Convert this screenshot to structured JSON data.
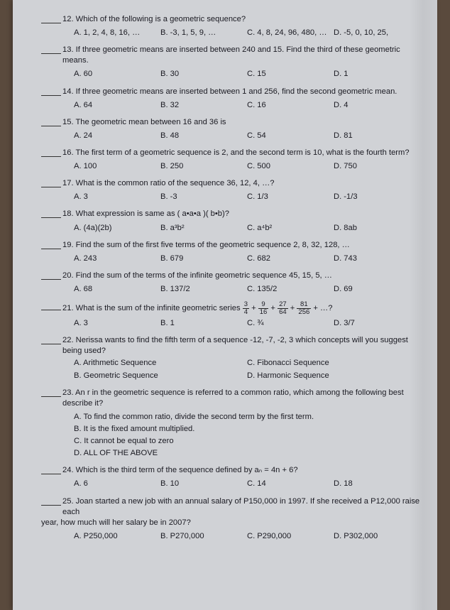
{
  "questions": [
    {
      "num": "12",
      "stem": "Which of the following is a geometric sequence?",
      "opts": [
        "A.  1, 2, 4, 8, 16, …",
        "B. -3, 1, 5, 9, …",
        "C. 4, 8, 24, 96, 480, …",
        "D. -5, 0, 10, 25,"
      ]
    },
    {
      "num": "13",
      "stem": "If three geometric means are inserted between 240 and 15. Find the third of these geometric means.",
      "opts": [
        "A.  60",
        "B. 30",
        "C. 15",
        "D. 1"
      ]
    },
    {
      "num": "14",
      "stem": "If three geometric means are inserted between 1 and 256, find the second geometric mean.",
      "opts": [
        "A.  64",
        "B. 32",
        "C. 16",
        "D. 4"
      ]
    },
    {
      "num": "15",
      "stem": "The geometric mean between 16 and 36 is",
      "opts": [
        "A.  24",
        "B. 48",
        "C. 54",
        "D. 81"
      ]
    },
    {
      "num": "16",
      "stem": "The first term of a geometric sequence is 2, and the second term is 10, what is the fourth term?",
      "opts": [
        "A.  100",
        "B. 250",
        "C. 500",
        "D. 750"
      ]
    },
    {
      "num": "17",
      "stem": "What is the common ratio of the sequence 36, 12, 4, …?",
      "opts": [
        "A.  3",
        "B. -3",
        "C.  1/3",
        "D. -1/3"
      ]
    },
    {
      "num": "18",
      "stem": "What expression is same as ( a•a•a )( b•b)?",
      "opts": [
        "A.  (4a)(2b)",
        "B. a³b²",
        "C. a⁴b²",
        "D. 8ab"
      ]
    },
    {
      "num": "19",
      "stem": "Find the sum of the first five terms of the geometric sequence 2, 8, 32, 128, …",
      "opts": [
        "A.  243",
        "B. 679",
        "C. 682",
        "D. 743"
      ]
    },
    {
      "num": "20",
      "stem": "Find the sum of the terms of the infinite geometric sequence 45, 15, 5, …",
      "opts": [
        "A.  68",
        "B. 137/2",
        "C. 135/2",
        "D. 69"
      ]
    },
    {
      "num": "21",
      "stem": "What is the sum of the infinite geometric series",
      "series": {
        "terms": [
          [
            "3",
            "4"
          ],
          [
            "9",
            "16"
          ],
          [
            "27",
            "64"
          ],
          [
            "81",
            "256"
          ]
        ],
        "tail": "+ …?"
      },
      "opts": [
        "A.  3",
        "B. 1",
        "C. ¾",
        "D. 3/7"
      ]
    },
    {
      "num": "22",
      "stem": "Nerissa wants to find the fifth term of a sequence -12, -7, -2, 3 which concepts will you suggest being used?",
      "two_col": [
        [
          "A.   Arithmetic Sequence",
          "C. Fibonacci Sequence"
        ],
        [
          "B.   Geometric Sequence",
          "D. Harmonic Sequence"
        ]
      ]
    },
    {
      "num": "23",
      "stem": "An r in the geometric sequence is referred to a common ratio, which among the following best describe it?",
      "list": [
        "A.  To find the common ratio, divide the second term by the first term.",
        "B.  It is the fixed amount multiplied.",
        "C.  It cannot be equal to zero",
        "D. ALL OF THE ABOVE"
      ]
    },
    {
      "num": "24",
      "stem": "Which is the third term of the sequence defined by aₙ = 4n + 6?",
      "opts": [
        "A.  6",
        "B. 10",
        "C. 14",
        "D. 18"
      ]
    },
    {
      "num": "25",
      "stem": "Joan started a new job with an annual salary of P150,000 in 1997. If she received a P12,000 raise each year, how much will her salary be in 2007?",
      "wrap": true,
      "opts": [
        "A.  P250,000",
        "B. P270,000",
        "C. P290,000",
        "D. P302,000"
      ]
    }
  ]
}
